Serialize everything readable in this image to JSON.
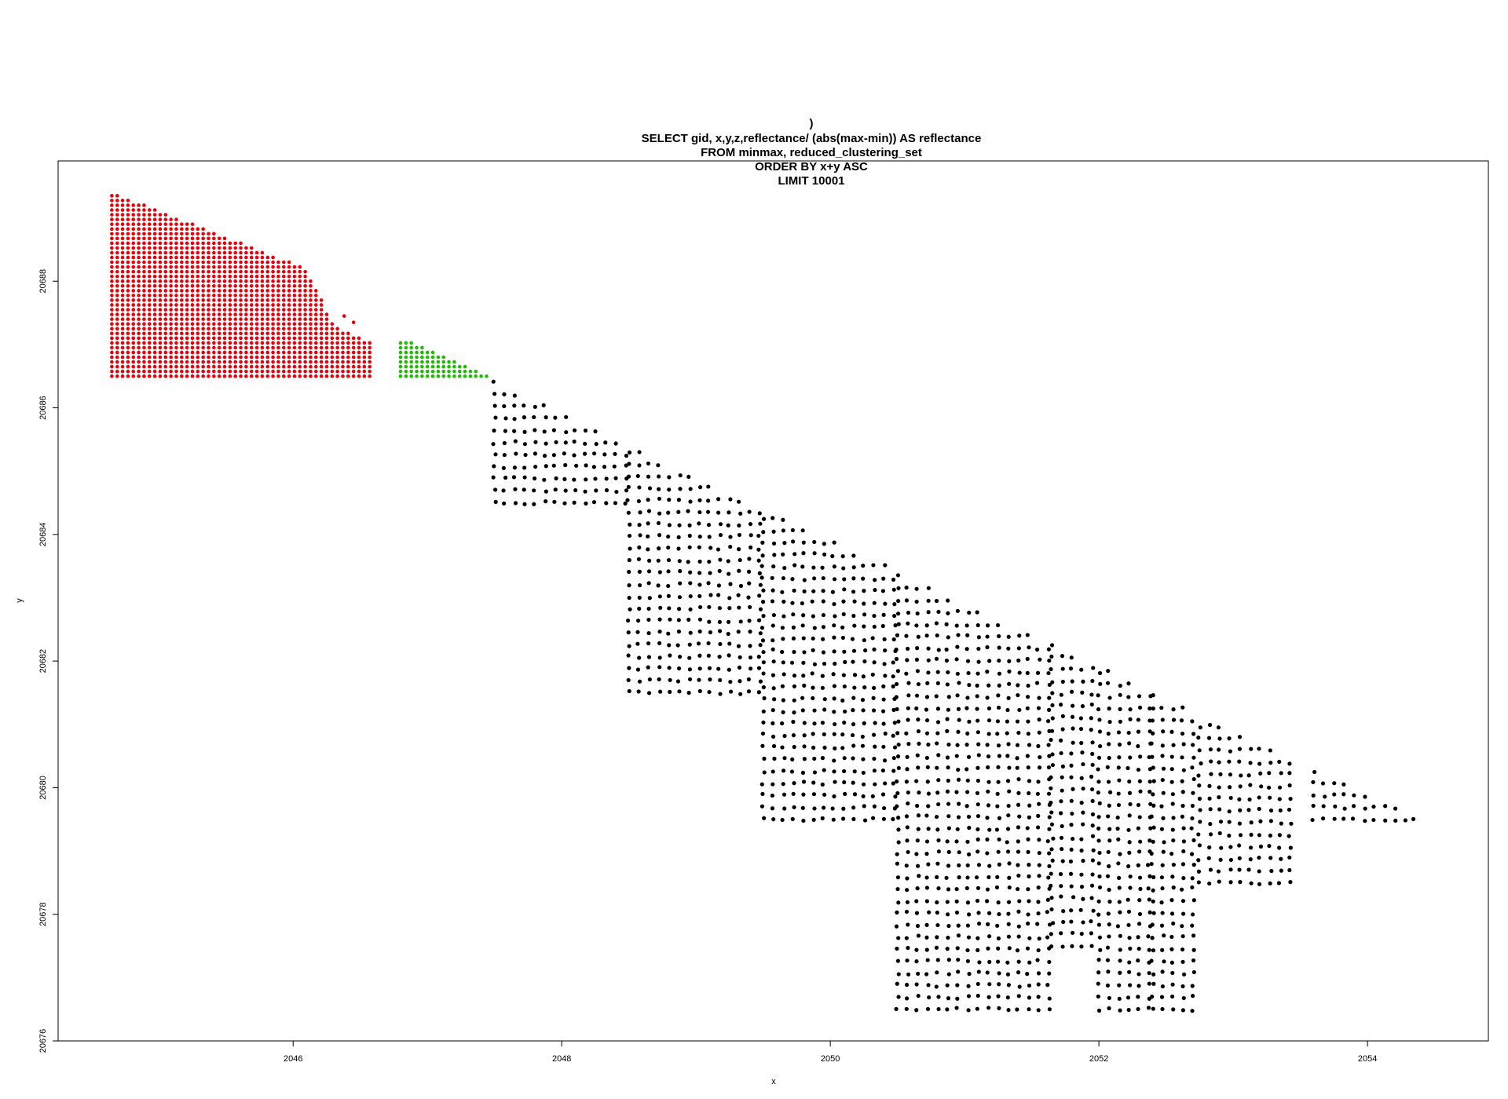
{
  "chart_data": {
    "type": "scatter",
    "title_lines": [
      ")",
      "SELECT gid, x,y,z,reflectance/ (abs(max-min)) AS reflectance",
      "FROM minmax, reduced_clustering_set",
      "ORDER BY x+y ASC",
      "LIMIT 10001"
    ],
    "xlabel": "x",
    "ylabel": "y",
    "xlim": [
      2044.25,
      2054.9
    ],
    "ylim": [
      20676.0,
      20689.9
    ],
    "x_ticks": [
      "2046",
      "2048",
      "2050",
      "2052",
      "2054"
    ],
    "y_ticks": [
      "20676",
      "20678",
      "20680",
      "20682",
      "20684",
      "20686",
      "20688"
    ],
    "grid": false,
    "legend": "none",
    "series": [
      {
        "color": "#e8000b",
        "regions": [
          {
            "x": [
              2044.65,
              2046.6
            ],
            "y_bottom": 20686.5,
            "top_line": [
              [
                2044.65,
                20689.4
              ],
              [
                2046.1,
                20688.2
              ],
              [
                2046.3,
                20687.3
              ],
              [
                2046.6,
                20687.0
              ]
            ]
          }
        ],
        "extra_points": [
          [
            2046.38,
            20687.45
          ],
          [
            2046.45,
            20687.35
          ]
        ]
      },
      {
        "color": "#1cbe00",
        "regions": [
          {
            "x": [
              2046.8,
              2047.45
            ],
            "y_bottom": 20686.5,
            "top_line": [
              [
                2046.88,
                20687.05
              ],
              [
                2047.45,
                20686.5
              ]
            ]
          }
        ]
      },
      {
        "color": "#000000",
        "regions": [
          {
            "x": [
              2047.5,
              2048.5
            ],
            "y_bottom": 20684.5,
            "top_line": [
              [
                2047.5,
                20686.4
              ],
              [
                2054.4,
                20679.5
              ]
            ]
          },
          {
            "x": [
              2048.5,
              2049.5
            ],
            "y_bottom": 20681.5,
            "top_line": [
              [
                2047.5,
                20686.4
              ],
              [
                2054.4,
                20679.5
              ]
            ]
          },
          {
            "x": [
              2049.5,
              2050.5
            ],
            "y_bottom": 20679.5,
            "top_line": [
              [
                2047.5,
                20686.4
              ],
              [
                2054.4,
                20679.5
              ]
            ]
          },
          {
            "x": [
              2050.5,
              2051.65
            ],
            "y_bottom": 20676.5,
            "top_line": [
              [
                2047.5,
                20686.4
              ],
              [
                2054.4,
                20679.5
              ]
            ]
          },
          {
            "x": [
              2051.65,
              2052.0
            ],
            "y_bottom": 20677.5,
            "top_line": [
              [
                2047.5,
                20686.4
              ],
              [
                2054.4,
                20679.5
              ]
            ]
          },
          {
            "x": [
              2052.0,
              2052.4
            ],
            "y_bottom": 20676.5,
            "top_line": [
              [
                2047.5,
                20686.4
              ],
              [
                2054.4,
                20679.5
              ]
            ]
          },
          {
            "x": [
              2052.4,
              2052.75
            ],
            "y_bottom": 20676.5,
            "top_line": [
              [
                2047.5,
                20686.4
              ],
              [
                2054.4,
                20679.5
              ]
            ]
          },
          {
            "x": [
              2052.75,
              2053.45
            ],
            "y_bottom": 20678.5,
            "top_line": [
              [
                2047.5,
                20686.4
              ],
              [
                2054.4,
                20679.5
              ]
            ]
          },
          {
            "x": [
              2053.6,
              2054.4
            ],
            "y_bottom": 20679.5,
            "top_line": [
              [
                2047.5,
                20686.4
              ],
              [
                2054.4,
                20679.5
              ]
            ]
          }
        ]
      }
    ]
  }
}
